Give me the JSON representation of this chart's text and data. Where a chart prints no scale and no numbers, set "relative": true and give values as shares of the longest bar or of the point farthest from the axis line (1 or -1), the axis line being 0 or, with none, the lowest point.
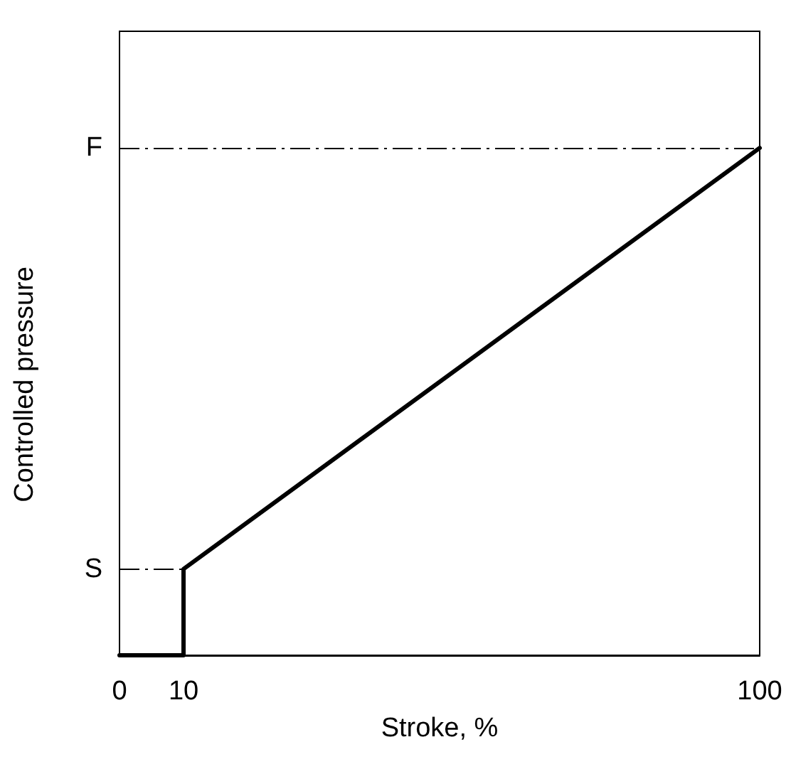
{
  "chart_data": {
    "type": "line",
    "relative": true,
    "xlabel": "Stroke, %",
    "ylabel": "Controlled pressure",
    "xlim": [
      0,
      100
    ],
    "xticks": [
      0,
      10,
      100
    ],
    "series": [
      {
        "color": "#000000",
        "x": [
          0,
          10,
          10,
          100
        ],
        "values": [
          0,
          0,
          0.17,
          1
        ]
      }
    ],
    "ref_lines": [
      {
        "axis": "y",
        "value": 0.17,
        "label": "S",
        "color": "#000000",
        "line_style": "dashed"
      },
      {
        "axis": "y",
        "value": 1,
        "label": "F",
        "color": "#000000",
        "line_style": "dashed"
      }
    ],
    "marker": "none",
    "grid": false
  }
}
